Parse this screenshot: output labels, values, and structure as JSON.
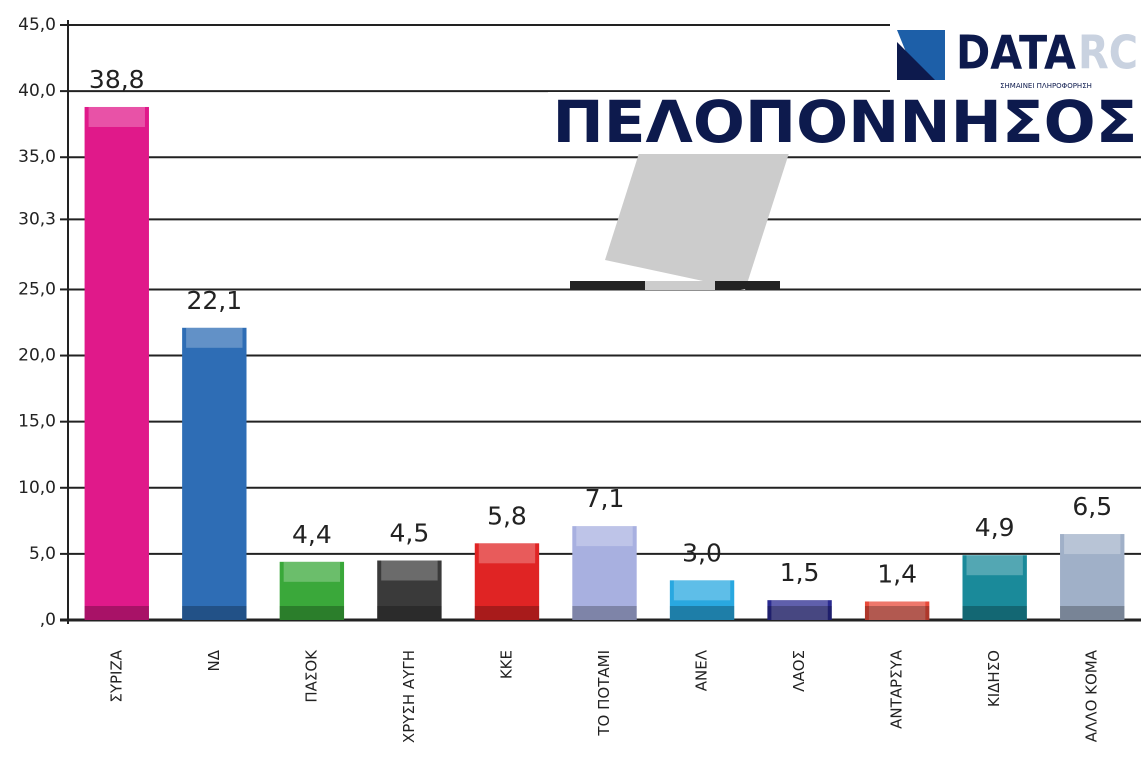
{
  "chart_data": {
    "type": "bar",
    "title": "ΠΕΛΟΠΟΝΝΗΣΟΣ",
    "categories": [
      "ΣΥΡΙΖΑ",
      "ΝΔ",
      "ΠΑΣΟΚ",
      "ΧΡΥΣΗ ΑΥΓΗ",
      "ΚΚΕ",
      "ΤΟ ΠΟΤΑΜΙ",
      "ΑΝΕΛ",
      "ΛΑΟΣ",
      "ΑΝΤΑΡΣΥΑ",
      "ΚΙΔΗΣΟ",
      "ΑΛΛΟ ΚΟΜΑ"
    ],
    "values": [
      38.8,
      22.1,
      4.4,
      4.5,
      5.8,
      7.1,
      3.0,
      1.5,
      1.4,
      4.9,
      6.5
    ],
    "value_labels": [
      "38,8",
      "22,1",
      "4,4",
      "4,5",
      "5,8",
      "7,1",
      "3,0",
      "1,5",
      "1,4",
      "4,9",
      "6,5"
    ],
    "colors": [
      "#e0198a",
      "#2e6db5",
      "#3aa83a",
      "#3a3a3a",
      "#e02424",
      "#a8b0e0",
      "#29a8e0",
      "#2a2a90",
      "#e84a3a",
      "#1a8a9a",
      "#a0b0c8"
    ],
    "ylim": [
      0,
      45
    ],
    "yticks": [
      {
        "value": 0,
        "label": ",0"
      },
      {
        "value": 5,
        "label": "5,0"
      },
      {
        "value": 10,
        "label": "10,0"
      },
      {
        "value": 15,
        "label": "15,0"
      },
      {
        "value": 20,
        "label": "20,0"
      },
      {
        "value": 25,
        "label": "25,0"
      },
      {
        "value": 30.3,
        "label": "30,3"
      },
      {
        "value": 35,
        "label": "35,0"
      },
      {
        "value": 40,
        "label": "40,0"
      },
      {
        "value": 45,
        "label": "45,0"
      }
    ],
    "grid": true
  },
  "logo": {
    "name": "DATA",
    "suffix": "RC",
    "tagline": "ΣΗΜΑΙΝΕΙ ΠΛΗΡΟΦΟΡΗΣΗ"
  }
}
